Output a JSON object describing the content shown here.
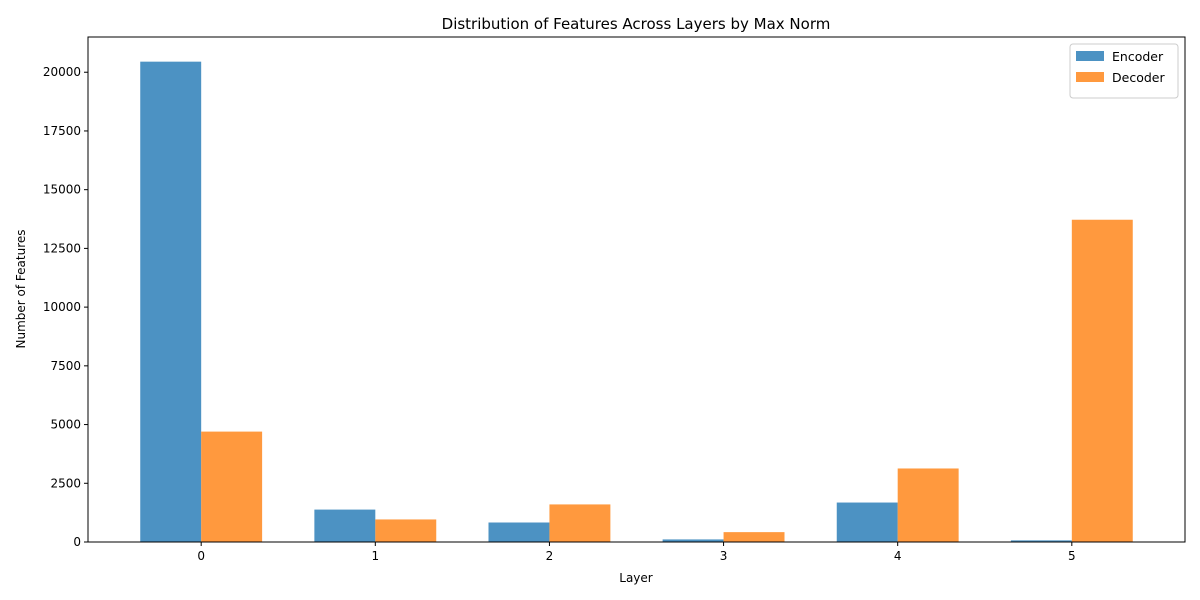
{
  "chart_data": {
    "type": "bar",
    "title": "Distribution of Features Across Layers by Max Norm",
    "xlabel": "Layer",
    "ylabel": "Number of Features",
    "categories": [
      "0",
      "1",
      "2",
      "3",
      "4",
      "5"
    ],
    "series": [
      {
        "name": "Encoder",
        "color": "#1f77b4",
        "values": [
          20450,
          1380,
          830,
          110,
          1680,
          70
        ]
      },
      {
        "name": "Decoder",
        "color": "#ff7f0e",
        "values": [
          4700,
          960,
          1600,
          420,
          3130,
          13720
        ]
      }
    ],
    "yticks": [
      0,
      2500,
      5000,
      7500,
      10000,
      12500,
      15000,
      17500,
      20000
    ],
    "ylim": [
      0,
      21500
    ],
    "grid": false,
    "legend_position": "top-right",
    "bar_opacity": 0.8
  }
}
